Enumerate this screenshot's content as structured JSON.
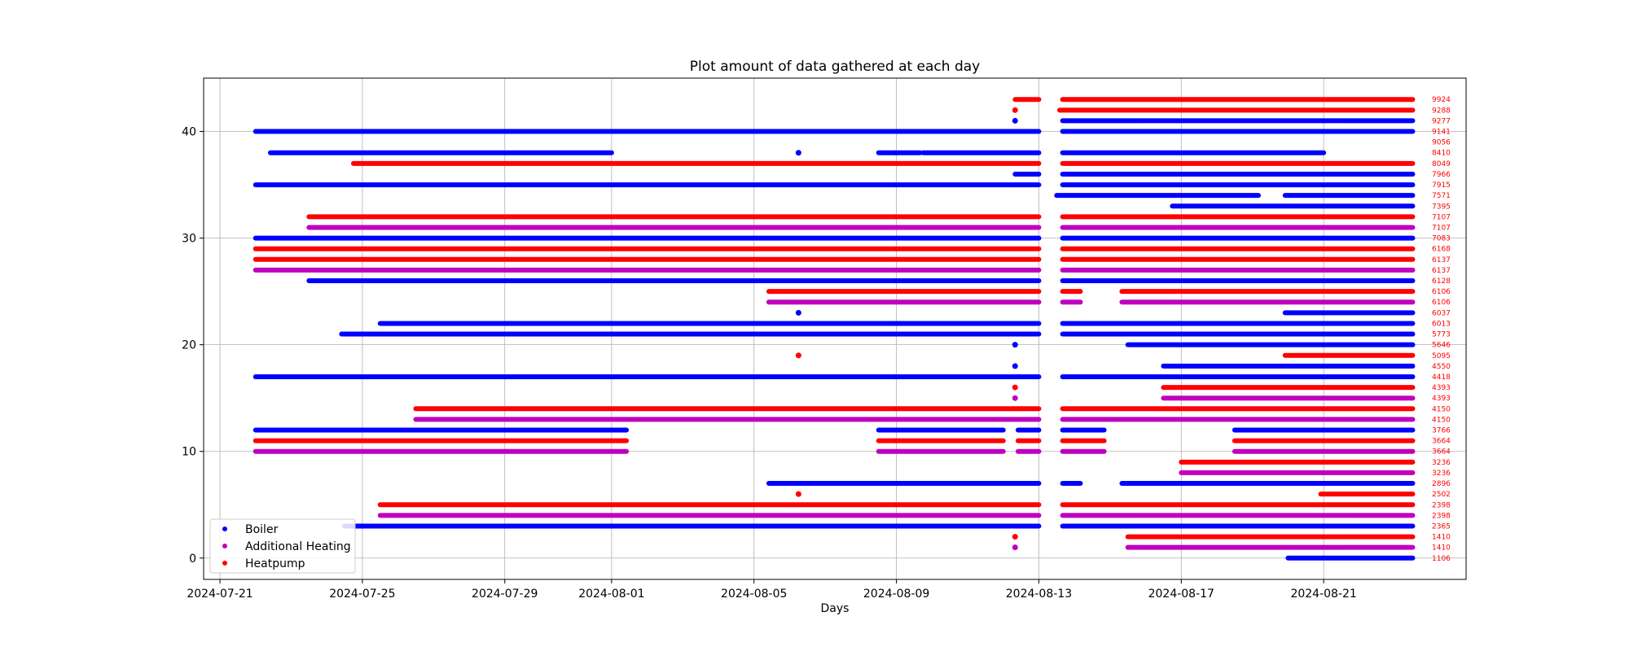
{
  "chart_data": {
    "type": "scatter",
    "title": "Plot amount of data gathered at each day",
    "xlabel": "Days",
    "ylabel": "",
    "x_ticks": [
      "2024-07-21",
      "2024-07-25",
      "2024-07-29",
      "2024-08-01",
      "2024-08-05",
      "2024-08-09",
      "2024-08-13",
      "2024-08-17",
      "2024-08-21"
    ],
    "y_ticks": [
      0,
      10,
      20,
      30,
      40
    ],
    "xlim": [
      "2024-07-20T13:00",
      "2024-08-25T00:00"
    ],
    "ylim": [
      -2,
      45
    ],
    "grid": true,
    "legend": {
      "placement": "lower-left",
      "entries": [
        "Boiler",
        "Additional Heating",
        "Heatpump"
      ]
    },
    "colors": {
      "Boiler": "#0000ff",
      "Additional Heating": "#bf00bf",
      "Heatpump": "#ff0000"
    },
    "series": [
      {
        "index": 0,
        "series": "Boiler",
        "count": "1106",
        "segments": [
          [
            "2024-08-20T00:00",
            "2024-08-23T12:00"
          ]
        ]
      },
      {
        "index": 1,
        "series": "Additional Heating",
        "count": "1410",
        "segments": [
          [
            "2024-08-15T12:00",
            "2024-08-23T12:00"
          ]
        ],
        "points": [
          "2024-08-12T08:00"
        ]
      },
      {
        "index": 2,
        "series": "Heatpump",
        "count": "1410",
        "segments": [
          [
            "2024-08-15T12:00",
            "2024-08-23T12:00"
          ]
        ],
        "points": [
          "2024-08-12T08:00"
        ]
      },
      {
        "index": 3,
        "series": "Boiler",
        "count": "2365",
        "segments": [
          [
            "2024-07-24T12:00",
            "2024-08-13T00:00"
          ],
          [
            "2024-08-13T16:00",
            "2024-08-23T12:00"
          ]
        ]
      },
      {
        "index": 4,
        "series": "Additional Heating",
        "count": "2398",
        "segments": [
          [
            "2024-07-25T12:00",
            "2024-08-13T00:00"
          ],
          [
            "2024-08-13T16:00",
            "2024-08-23T12:00"
          ]
        ]
      },
      {
        "index": 5,
        "series": "Heatpump",
        "count": "2398",
        "segments": [
          [
            "2024-07-25T12:00",
            "2024-08-13T00:00"
          ],
          [
            "2024-08-13T16:00",
            "2024-08-23T12:00"
          ]
        ]
      },
      {
        "index": 6,
        "series": "Heatpump",
        "count": "2502",
        "segments": [
          [
            "2024-08-20T22:00",
            "2024-08-23T12:00"
          ]
        ],
        "points": [
          "2024-08-06T06:00"
        ]
      },
      {
        "index": 7,
        "series": "Boiler",
        "count": "2896",
        "segments": [
          [
            "2024-08-05T10:00",
            "2024-08-13T00:00"
          ],
          [
            "2024-08-13T16:00",
            "2024-08-14T04:00"
          ],
          [
            "2024-08-15T08:00",
            "2024-08-23T12:00"
          ]
        ]
      },
      {
        "index": 8,
        "series": "Additional Heating",
        "count": "3236",
        "segments": [
          [
            "2024-08-17T00:00",
            "2024-08-23T12:00"
          ]
        ]
      },
      {
        "index": 9,
        "series": "Heatpump",
        "count": "3236",
        "segments": [
          [
            "2024-08-17T00:00",
            "2024-08-23T12:00"
          ]
        ]
      },
      {
        "index": 10,
        "series": "Additional Heating",
        "count": "3664",
        "segments": [
          [
            "2024-07-22T00:00",
            "2024-08-01T10:00"
          ],
          [
            "2024-08-08T12:00",
            "2024-08-12T00:00"
          ],
          [
            "2024-08-12T10:00",
            "2024-08-13T00:00"
          ],
          [
            "2024-08-13T16:00",
            "2024-08-14T20:00"
          ],
          [
            "2024-08-18T12:00",
            "2024-08-23T12:00"
          ]
        ]
      },
      {
        "index": 11,
        "series": "Heatpump",
        "count": "3664",
        "segments": [
          [
            "2024-07-22T00:00",
            "2024-08-01T10:00"
          ],
          [
            "2024-08-08T12:00",
            "2024-08-12T00:00"
          ],
          [
            "2024-08-12T10:00",
            "2024-08-13T00:00"
          ],
          [
            "2024-08-13T16:00",
            "2024-08-14T20:00"
          ],
          [
            "2024-08-18T12:00",
            "2024-08-23T12:00"
          ]
        ]
      },
      {
        "index": 12,
        "series": "Boiler",
        "count": "3766",
        "segments": [
          [
            "2024-07-22T00:00",
            "2024-08-01T10:00"
          ],
          [
            "2024-08-08T12:00",
            "2024-08-12T00:00"
          ],
          [
            "2024-08-12T10:00",
            "2024-08-13T00:00"
          ],
          [
            "2024-08-13T16:00",
            "2024-08-14T20:00"
          ],
          [
            "2024-08-18T12:00",
            "2024-08-23T12:00"
          ]
        ]
      },
      {
        "index": 13,
        "series": "Additional Heating",
        "count": "4150",
        "segments": [
          [
            "2024-07-26T12:00",
            "2024-08-13T00:00"
          ],
          [
            "2024-08-13T16:00",
            "2024-08-23T12:00"
          ]
        ]
      },
      {
        "index": 14,
        "series": "Heatpump",
        "count": "4150",
        "segments": [
          [
            "2024-07-26T12:00",
            "2024-08-13T00:00"
          ],
          [
            "2024-08-13T16:00",
            "2024-08-23T12:00"
          ]
        ]
      },
      {
        "index": 15,
        "series": "Additional Heating",
        "count": "4393",
        "segments": [
          [
            "2024-08-16T12:00",
            "2024-08-23T12:00"
          ]
        ],
        "points": [
          "2024-08-12T08:00"
        ]
      },
      {
        "index": 16,
        "series": "Heatpump",
        "count": "4393",
        "segments": [
          [
            "2024-08-16T12:00",
            "2024-08-23T12:00"
          ]
        ],
        "points": [
          "2024-08-12T08:00"
        ]
      },
      {
        "index": 17,
        "series": "Boiler",
        "count": "4418",
        "segments": [
          [
            "2024-07-22T00:00",
            "2024-08-13T00:00"
          ],
          [
            "2024-08-13T16:00",
            "2024-08-23T12:00"
          ]
        ]
      },
      {
        "index": 18,
        "series": "Boiler",
        "count": "4550",
        "segments": [
          [
            "2024-08-16T12:00",
            "2024-08-23T12:00"
          ]
        ],
        "points": [
          "2024-08-12T08:00"
        ]
      },
      {
        "index": 19,
        "series": "Heatpump",
        "count": "5095",
        "segments": [
          [
            "2024-08-19T22:00",
            "2024-08-23T12:00"
          ]
        ],
        "points": [
          "2024-08-06T06:00"
        ]
      },
      {
        "index": 20,
        "series": "Boiler",
        "count": "5646",
        "segments": [
          [
            "2024-08-15T12:00",
            "2024-08-23T12:00"
          ]
        ],
        "points": [
          "2024-08-12T08:00"
        ]
      },
      {
        "index": 21,
        "series": "Boiler",
        "count": "5773",
        "segments": [
          [
            "2024-07-24T10:00",
            "2024-08-13T00:00"
          ],
          [
            "2024-08-13T16:00",
            "2024-08-23T12:00"
          ]
        ]
      },
      {
        "index": 22,
        "series": "Boiler",
        "count": "6013",
        "segments": [
          [
            "2024-07-25T12:00",
            "2024-08-13T00:00"
          ],
          [
            "2024-08-13T16:00",
            "2024-08-23T12:00"
          ]
        ]
      },
      {
        "index": 23,
        "series": "Boiler",
        "count": "6037",
        "segments": [
          [
            "2024-08-19T22:00",
            "2024-08-23T12:00"
          ]
        ],
        "points": [
          "2024-08-06T06:00"
        ]
      },
      {
        "index": 24,
        "series": "Additional Heating",
        "count": "6106",
        "segments": [
          [
            "2024-08-05T10:00",
            "2024-08-13T00:00"
          ],
          [
            "2024-08-13T16:00",
            "2024-08-14T04:00"
          ],
          [
            "2024-08-15T08:00",
            "2024-08-23T12:00"
          ]
        ]
      },
      {
        "index": 25,
        "series": "Heatpump",
        "count": "6106",
        "segments": [
          [
            "2024-08-05T10:00",
            "2024-08-13T00:00"
          ],
          [
            "2024-08-13T16:00",
            "2024-08-14T04:00"
          ],
          [
            "2024-08-15T08:00",
            "2024-08-23T12:00"
          ]
        ]
      },
      {
        "index": 26,
        "series": "Boiler",
        "count": "6128",
        "segments": [
          [
            "2024-07-23T12:00",
            "2024-08-13T00:00"
          ],
          [
            "2024-08-13T16:00",
            "2024-08-23T12:00"
          ]
        ]
      },
      {
        "index": 27,
        "series": "Additional Heating",
        "count": "6137",
        "segments": [
          [
            "2024-07-22T00:00",
            "2024-08-13T00:00"
          ],
          [
            "2024-08-13T16:00",
            "2024-08-23T12:00"
          ]
        ]
      },
      {
        "index": 28,
        "series": "Heatpump",
        "count": "6137",
        "segments": [
          [
            "2024-07-22T00:00",
            "2024-08-13T00:00"
          ],
          [
            "2024-08-13T16:00",
            "2024-08-23T12:00"
          ]
        ]
      },
      {
        "index": 29,
        "series": "Heatpump",
        "count": "6168",
        "segments": [
          [
            "2024-07-22T00:00",
            "2024-08-13T00:00"
          ],
          [
            "2024-08-13T16:00",
            "2024-08-23T12:00"
          ]
        ]
      },
      {
        "index": 30,
        "series": "Boiler",
        "count": "7083",
        "segments": [
          [
            "2024-07-22T00:00",
            "2024-08-13T00:00"
          ],
          [
            "2024-08-13T16:00",
            "2024-08-23T12:00"
          ]
        ]
      },
      {
        "index": 31,
        "series": "Additional Heating",
        "count": "7107",
        "segments": [
          [
            "2024-07-23T12:00",
            "2024-08-13T00:00"
          ],
          [
            "2024-08-13T16:00",
            "2024-08-23T12:00"
          ]
        ]
      },
      {
        "index": 32,
        "series": "Heatpump",
        "count": "7107",
        "segments": [
          [
            "2024-07-23T12:00",
            "2024-08-13T00:00"
          ],
          [
            "2024-08-13T16:00",
            "2024-08-23T12:00"
          ]
        ]
      },
      {
        "index": 33,
        "series": "Boiler",
        "count": "7395",
        "segments": [
          [
            "2024-08-16T18:00",
            "2024-08-23T12:00"
          ]
        ]
      },
      {
        "index": 34,
        "series": "Boiler",
        "count": "7571",
        "segments": [
          [
            "2024-08-13T12:00",
            "2024-08-19T04:00"
          ],
          [
            "2024-08-19T22:00",
            "2024-08-23T12:00"
          ]
        ]
      },
      {
        "index": 35,
        "series": "Boiler",
        "count": "7915",
        "segments": [
          [
            "2024-07-22T00:00",
            "2024-08-13T00:00"
          ],
          [
            "2024-08-13T16:00",
            "2024-08-23T12:00"
          ]
        ]
      },
      {
        "index": 36,
        "series": "Boiler",
        "count": "7966",
        "segments": [
          [
            "2024-08-12T08:00",
            "2024-08-13T00:00"
          ],
          [
            "2024-08-13T16:00",
            "2024-08-23T12:00"
          ]
        ]
      },
      {
        "index": 37,
        "series": "Heatpump",
        "count": "8049",
        "segments": [
          [
            "2024-07-24T18:00",
            "2024-08-13T00:00"
          ],
          [
            "2024-08-13T16:00",
            "2024-08-23T12:00"
          ]
        ]
      },
      {
        "index": 38,
        "series": "Boiler",
        "count": "8410",
        "segments": [
          [
            "2024-07-22T10:00",
            "2024-08-01T00:00"
          ],
          [
            "2024-08-08T12:00",
            "2024-08-09T16:00"
          ],
          [
            "2024-08-09T18:00",
            "2024-08-13T00:00"
          ],
          [
            "2024-08-13T16:00",
            "2024-08-21T00:00"
          ]
        ],
        "points": [
          "2024-08-06T06:00"
        ]
      },
      {
        "index": 39,
        "series": "Heatpump",
        "count": "9056",
        "segments": []
      },
      {
        "index": 40,
        "series": "Boiler",
        "count": "9141",
        "segments": [
          [
            "2024-07-22T00:00",
            "2024-08-13T00:00"
          ],
          [
            "2024-08-13T16:00",
            "2024-08-23T12:00"
          ]
        ]
      },
      {
        "index": 41,
        "series": "Boiler",
        "count": "9277",
        "segments": [
          [
            "2024-08-13T16:00",
            "2024-08-23T12:00"
          ]
        ],
        "points": [
          "2024-08-12T08:00"
        ]
      },
      {
        "index": 42,
        "series": "Heatpump",
        "count": "9288",
        "segments": [
          [
            "2024-08-13T14:00",
            "2024-08-23T12:00"
          ]
        ],
        "points": [
          "2024-08-12T08:00"
        ]
      },
      {
        "index": 43,
        "series": "Heatpump",
        "count": "9924",
        "segments": [
          [
            "2024-08-12T08:00",
            "2024-08-13T00:00"
          ],
          [
            "2024-08-13T16:00",
            "2024-08-23T12:00"
          ]
        ]
      }
    ]
  }
}
